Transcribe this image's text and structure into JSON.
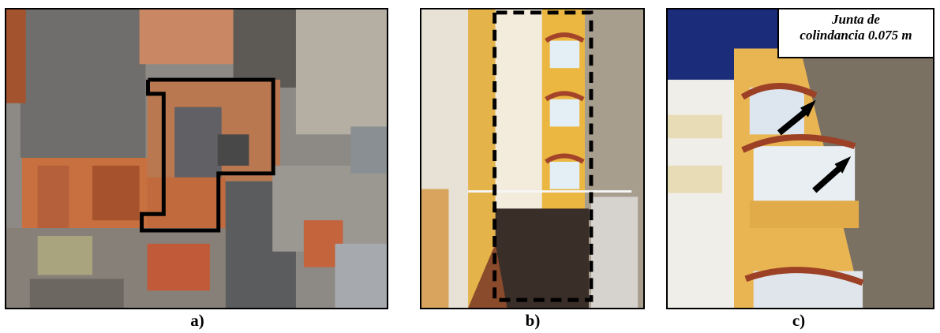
{
  "figure": {
    "panels": [
      {
        "id": "a",
        "caption": "a)",
        "description_icon": "aerial-photo-with-outline"
      },
      {
        "id": "b",
        "caption": "b)",
        "description_icon": "building-facade-with-dashed-outline"
      },
      {
        "id": "c",
        "caption": "c)",
        "description_icon": "balcony-closeup-with-arrows"
      }
    ],
    "callout": {
      "line1": "Junta de",
      "line2": "colindancia 0.075 m"
    },
    "colors": {
      "outline": "#000000",
      "ochre": "#e7b54a",
      "terracotta": "#b5603a",
      "sky": "#1a2c7a"
    }
  }
}
